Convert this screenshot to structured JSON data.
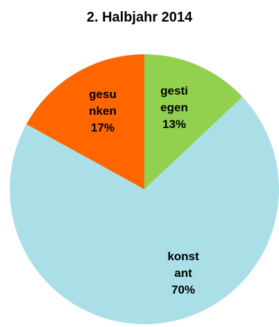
{
  "chart_data": {
    "type": "pie",
    "title": "2. Halbjahr 2014",
    "categories": [
      "gestiegen",
      "konstant",
      "gesunken"
    ],
    "values": [
      13,
      70,
      17
    ],
    "value_labels": [
      "13%",
      "70%",
      "17%"
    ],
    "colors": [
      "#92d050",
      "#abdfe8",
      "#ff6600"
    ]
  }
}
